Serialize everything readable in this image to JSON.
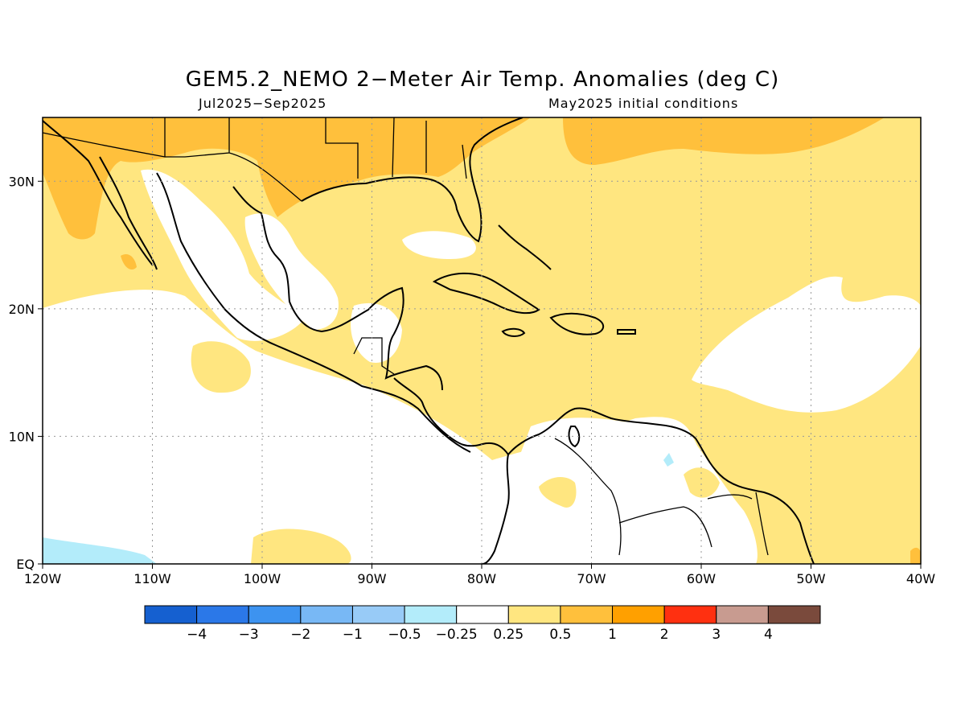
{
  "header": {
    "title": "GEM5.2_NEMO 2−Meter Air Temp. Anomalies (deg C)",
    "period": "Jul2025−Sep2025",
    "init": "May2025 initial conditions"
  },
  "map": {
    "lon_range": [
      -120,
      -40
    ],
    "lat_range": [
      0,
      35
    ],
    "x_ticks": [
      {
        "value": -120,
        "label": "120W"
      },
      {
        "value": -110,
        "label": "110W"
      },
      {
        "value": -100,
        "label": "100W"
      },
      {
        "value": -90,
        "label": "90W"
      },
      {
        "value": -80,
        "label": "80W"
      },
      {
        "value": -70,
        "label": "70W"
      },
      {
        "value": -60,
        "label": "60W"
      },
      {
        "value": -50,
        "label": "50W"
      },
      {
        "value": -40,
        "label": "40W"
      }
    ],
    "y_ticks": [
      {
        "value": 0,
        "label": "EQ"
      },
      {
        "value": 10,
        "label": "10N"
      },
      {
        "value": 20,
        "label": "20N"
      },
      {
        "value": 30,
        "label": "30N"
      }
    ],
    "grid": "dotted"
  },
  "colorbar": {
    "colors": [
      "#1560d0",
      "#2b78e8",
      "#3d93f0",
      "#78b8f5",
      "#98cbf7",
      "#b3ecfa",
      "#ffffff",
      "#ffe680",
      "#ffc03c",
      "#ffa000",
      "#ff3010",
      "#c89b90",
      "#7a4a3c"
    ],
    "labels": [
      "−4",
      "−3",
      "−2",
      "−1",
      "−0.5",
      "−0.25",
      "0.25",
      "0.5",
      "1",
      "2",
      "3",
      "4"
    ]
  },
  "palette": {
    "light": "#ffe680",
    "medium": "#ffc03c",
    "cool": "#b3ecfa",
    "neutral": "#ffffff"
  }
}
